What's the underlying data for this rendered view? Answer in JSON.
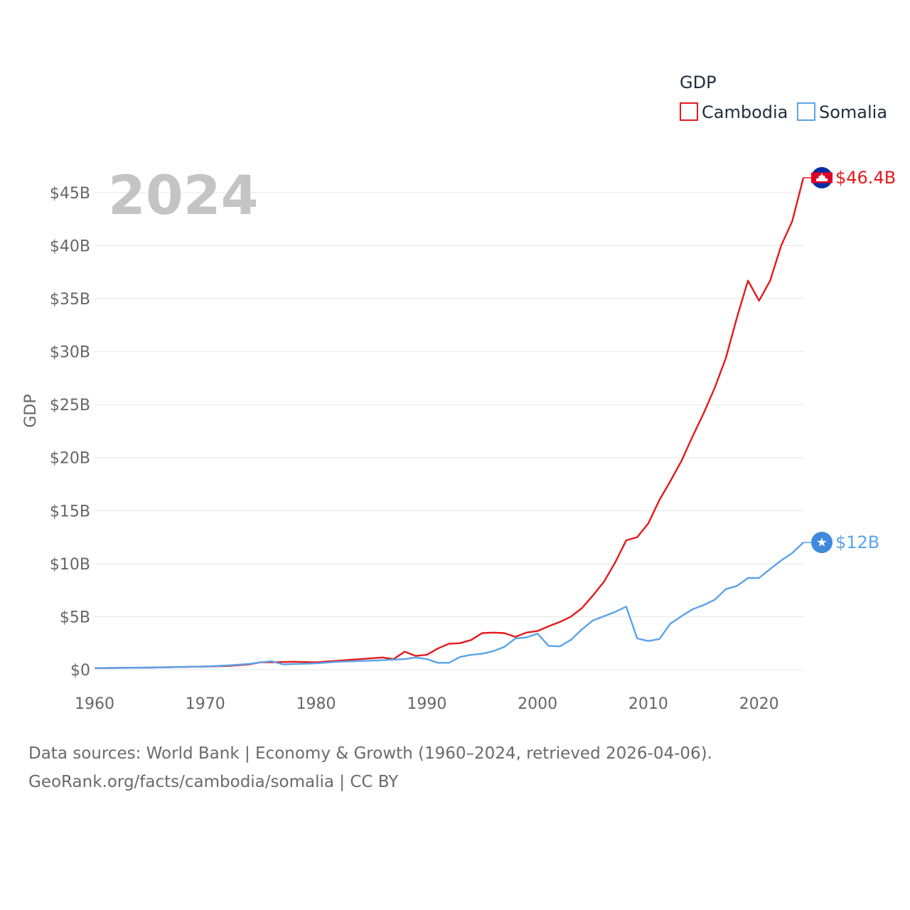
{
  "chart_data": {
    "type": "line",
    "title": "",
    "xlabel": "",
    "ylabel": "GDP",
    "current_year_label": "2024",
    "legend": {
      "title": "GDP",
      "placement": "top-right"
    },
    "xlim": [
      1960,
      2024
    ],
    "ylim": [
      0,
      46.4
    ],
    "x_ticks": [
      {
        "value": 1960,
        "label": "1960"
      },
      {
        "value": 1970,
        "label": "1970"
      },
      {
        "value": 1980,
        "label": "1980"
      },
      {
        "value": 1990,
        "label": "1990"
      },
      {
        "value": 2000,
        "label": "2000"
      },
      {
        "value": 2010,
        "label": "2010"
      },
      {
        "value": 2020,
        "label": "2020"
      }
    ],
    "y_ticks": [
      {
        "value": 0,
        "label": "$0"
      },
      {
        "value": 5,
        "label": "$5B"
      },
      {
        "value": 10,
        "label": "$10B"
      },
      {
        "value": 15,
        "label": "$15B"
      },
      {
        "value": 20,
        "label": "$20B"
      },
      {
        "value": 25,
        "label": "$25B"
      },
      {
        "value": 30,
        "label": "$30B"
      },
      {
        "value": 35,
        "label": "$35B"
      },
      {
        "value": 40,
        "label": "$40B"
      },
      {
        "value": 45,
        "label": "$45B"
      }
    ],
    "series": [
      {
        "name": "Cambodia",
        "color": "#e41a1c",
        "end_label": "$46.4B",
        "flag_icon": "cambodia-flag-icon",
        "points": [
          [
            1960,
            0.15
          ],
          [
            1965,
            0.2
          ],
          [
            1970,
            0.3
          ],
          [
            1972,
            0.35
          ],
          [
            1974,
            0.5
          ],
          [
            1975,
            0.7
          ],
          [
            1976,
            0.7
          ],
          [
            1978,
            0.75
          ],
          [
            1980,
            0.7
          ],
          [
            1982,
            0.85
          ],
          [
            1984,
            1.0
          ],
          [
            1986,
            1.15
          ],
          [
            1987,
            1.0
          ],
          [
            1988,
            1.7
          ],
          [
            1989,
            1.3
          ],
          [
            1990,
            1.4
          ],
          [
            1991,
            2.0
          ],
          [
            1992,
            2.45
          ],
          [
            1993,
            2.5
          ],
          [
            1994,
            2.8
          ],
          [
            1995,
            3.45
          ],
          [
            1996,
            3.5
          ],
          [
            1997,
            3.45
          ],
          [
            1998,
            3.1
          ],
          [
            1999,
            3.5
          ],
          [
            2000,
            3.65
          ],
          [
            2001,
            4.1
          ],
          [
            2002,
            4.5
          ],
          [
            2003,
            5.0
          ],
          [
            2004,
            5.8
          ],
          [
            2005,
            7.0
          ],
          [
            2006,
            8.3
          ],
          [
            2007,
            10.1
          ],
          [
            2008,
            12.2
          ],
          [
            2009,
            12.5
          ],
          [
            2010,
            13.8
          ],
          [
            2011,
            16.0
          ],
          [
            2012,
            17.8
          ],
          [
            2013,
            19.7
          ],
          [
            2014,
            22.0
          ],
          [
            2015,
            24.2
          ],
          [
            2016,
            26.6
          ],
          [
            2017,
            29.4
          ],
          [
            2018,
            33.2
          ],
          [
            2019,
            36.7
          ],
          [
            2020,
            34.8
          ],
          [
            2021,
            36.7
          ],
          [
            2022,
            40.0
          ],
          [
            2023,
            42.3
          ],
          [
            2024,
            46.4
          ]
        ]
      },
      {
        "name": "Somalia",
        "color": "#5ba3ea",
        "end_label": "$12B",
        "flag_icon": "somalia-flag-icon",
        "points": [
          [
            1960,
            0.15
          ],
          [
            1965,
            0.2
          ],
          [
            1970,
            0.3
          ],
          [
            1972,
            0.4
          ],
          [
            1974,
            0.55
          ],
          [
            1975,
            0.7
          ],
          [
            1976,
            0.8
          ],
          [
            1977,
            0.5
          ],
          [
            1980,
            0.6
          ],
          [
            1982,
            0.75
          ],
          [
            1985,
            0.85
          ],
          [
            1988,
            1.0
          ],
          [
            1989,
            1.15
          ],
          [
            1990,
            1.0
          ],
          [
            1991,
            0.65
          ],
          [
            1992,
            0.65
          ],
          [
            1993,
            1.2
          ],
          [
            1994,
            1.4
          ],
          [
            1995,
            1.5
          ],
          [
            1996,
            1.75
          ],
          [
            1997,
            2.15
          ],
          [
            1998,
            2.95
          ],
          [
            1999,
            3.05
          ],
          [
            2000,
            3.4
          ],
          [
            2001,
            2.25
          ],
          [
            2002,
            2.2
          ],
          [
            2003,
            2.8
          ],
          [
            2004,
            3.8
          ],
          [
            2005,
            4.65
          ],
          [
            2006,
            5.05
          ],
          [
            2007,
            5.45
          ],
          [
            2008,
            5.95
          ],
          [
            2009,
            2.95
          ],
          [
            2010,
            2.7
          ],
          [
            2011,
            2.9
          ],
          [
            2012,
            4.35
          ],
          [
            2013,
            5.05
          ],
          [
            2014,
            5.7
          ],
          [
            2015,
            6.1
          ],
          [
            2016,
            6.6
          ],
          [
            2017,
            7.6
          ],
          [
            2018,
            7.9
          ],
          [
            2019,
            8.65
          ],
          [
            2020,
            8.65
          ],
          [
            2021,
            9.5
          ],
          [
            2022,
            10.3
          ],
          [
            2023,
            11.0
          ],
          [
            2024,
            12.0
          ]
        ]
      }
    ]
  },
  "footer": {
    "line1": "Data sources: World Bank | Economy & Growth (1960–2024, retrieved 2026-04-06).",
    "line2": "GeoRank.org/facts/cambodia/somalia | CC BY"
  }
}
